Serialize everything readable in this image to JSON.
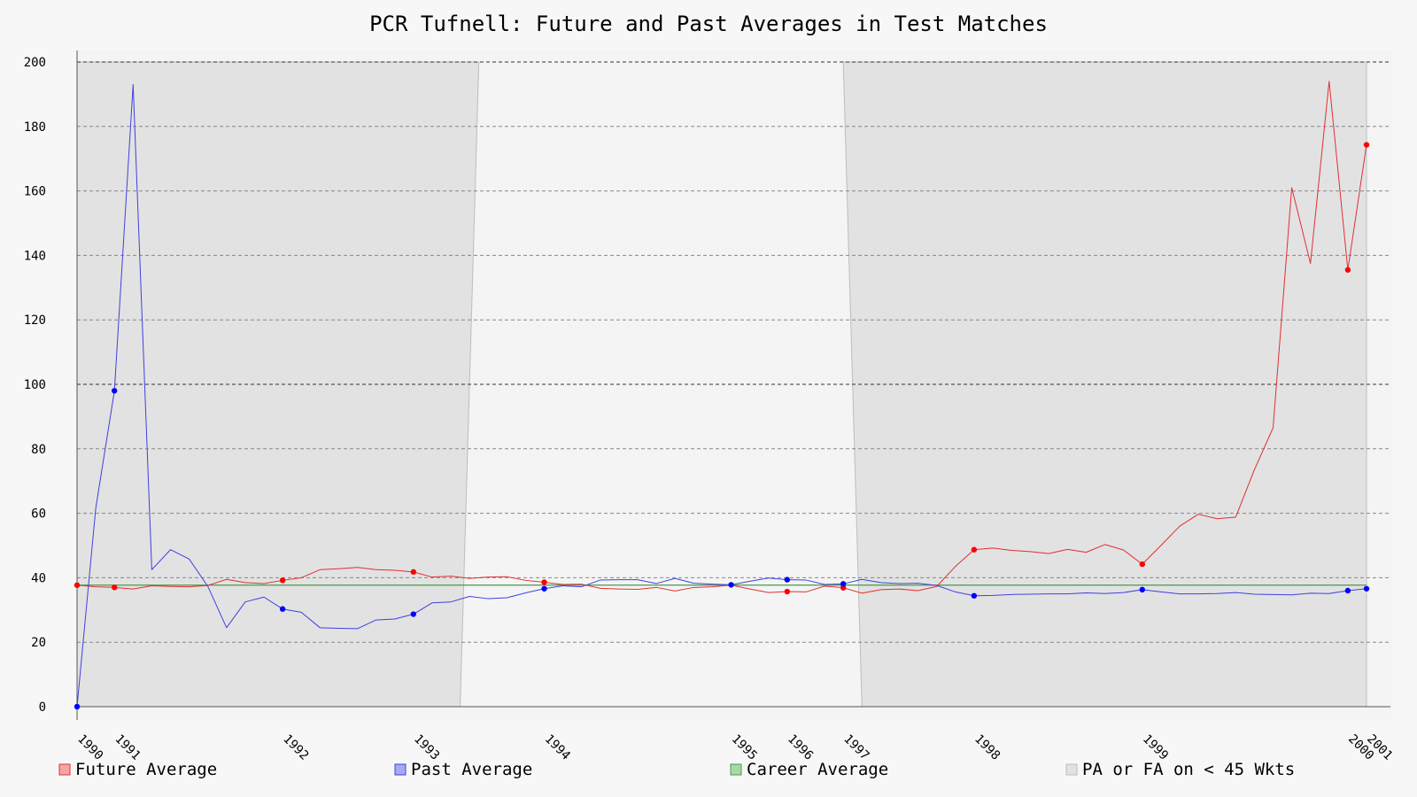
{
  "chart_data": {
    "type": "line",
    "title": "PCR Tufnell: Future and Past Averages in Test Matches",
    "ylim": [
      0,
      200
    ],
    "yticks": [
      0,
      20,
      40,
      60,
      80,
      100,
      120,
      140,
      160,
      180,
      200
    ],
    "ytick_labels": [
      "0",
      "20",
      "40",
      "60",
      "80",
      "100",
      "120",
      "140",
      "160",
      "180",
      "200"
    ],
    "x_range": [
      0,
      69
    ],
    "xticks": [
      {
        "x": 0,
        "label": "1990"
      },
      {
        "x": 2,
        "label": "1991"
      },
      {
        "x": 11,
        "label": "1992"
      },
      {
        "x": 18,
        "label": "1993"
      },
      {
        "x": 25,
        "label": "1994"
      },
      {
        "x": 35,
        "label": "1995"
      },
      {
        "x": 38,
        "label": "1996"
      },
      {
        "x": 41,
        "label": "1997"
      },
      {
        "x": 48,
        "label": "1998"
      },
      {
        "x": 57,
        "label": "1999"
      },
      {
        "x": 68,
        "label": "2000"
      },
      {
        "x": 69,
        "label": "2001"
      }
    ],
    "grid": true,
    "legend_position": "bottom",
    "career_average": 37.7,
    "shaded_regions": [
      {
        "name": "PA or FA on < 45 Wkts",
        "bottom": [
          0,
          20.5
        ],
        "top": [
          0,
          21.5
        ],
        "color": "#e2e2e2"
      },
      {
        "name": "PA or FA on < 45 Wkts",
        "bottom": [
          42,
          69
        ],
        "top": [
          41,
          69
        ],
        "color": "#e2e2e2"
      }
    ],
    "series": [
      {
        "name": "Future Average",
        "color": "#e03030",
        "values": [
          37.7,
          37.2,
          37.0,
          36.5,
          37.5,
          37.3,
          37.2,
          37.6,
          39.5,
          38.5,
          38.2,
          39.2,
          40.0,
          42.5,
          42.8,
          43.2,
          42.5,
          42.3,
          41.8,
          40.2,
          40.5,
          39.8,
          40.2,
          40.3,
          39.2,
          38.6,
          37.9,
          38.0,
          36.7,
          36.5,
          36.4,
          37.0,
          35.9,
          37.0,
          37.2,
          37.7,
          36.5,
          35.4,
          35.7,
          35.6,
          37.4,
          36.9,
          35.2,
          36.3,
          36.5,
          36.0,
          37.3,
          43.5,
          48.7,
          49.2,
          48.5,
          48.1,
          47.5,
          48.8,
          47.9,
          50.3,
          48.6,
          44.2,
          50.0,
          56.0,
          59.7,
          58.3,
          58.8,
          73.5,
          86.5,
          161.0,
          137.5,
          194.0,
          135.5,
          174.3
        ],
        "markers_at": [
          0,
          2,
          11,
          18,
          25,
          38,
          41,
          48,
          57,
          68,
          69
        ]
      },
      {
        "name": "Past Average",
        "color": "#4040e0",
        "values": [
          0.0,
          61.5,
          98.0,
          193.0,
          42.5,
          48.7,
          45.8,
          37.3,
          24.5,
          32.5,
          34.0,
          30.3,
          29.3,
          24.5,
          24.3,
          24.2,
          26.9,
          27.2,
          28.7,
          32.2,
          32.5,
          34.2,
          33.5,
          33.8,
          35.3,
          36.6,
          37.5,
          37.2,
          39.3,
          39.4,
          39.4,
          38.2,
          39.8,
          38.3,
          38.0,
          37.8,
          38.9,
          39.9,
          39.4,
          39.3,
          37.9,
          38.1,
          39.5,
          38.5,
          38.2,
          38.3,
          37.6,
          35.6,
          34.4,
          34.5,
          34.8,
          34.9,
          35.0,
          35.0,
          35.3,
          35.1,
          35.4,
          36.3,
          35.6,
          35.0,
          35.0,
          35.1,
          35.4,
          34.9,
          34.8,
          34.7,
          35.2,
          35.1,
          36.0,
          36.6
        ],
        "markers_at": [
          0,
          2,
          11,
          18,
          25,
          35,
          38,
          41,
          48,
          57,
          68,
          69
        ]
      },
      {
        "name": "Career Average",
        "color": "#4a9a4a"
      }
    ],
    "legend": [
      {
        "label": "Future Average",
        "fill": "#f4a6a6",
        "stroke": "#e03030"
      },
      {
        "label": "Past Average",
        "fill": "#a8a8f4",
        "stroke": "#4040e0"
      },
      {
        "label": "Career Average",
        "fill": "#a8d8a8",
        "stroke": "#4a9a4a"
      },
      {
        "label": "PA or FA on < 45 Wkts",
        "fill": "#e2e2e2",
        "stroke": "#bbbbbb"
      }
    ]
  }
}
